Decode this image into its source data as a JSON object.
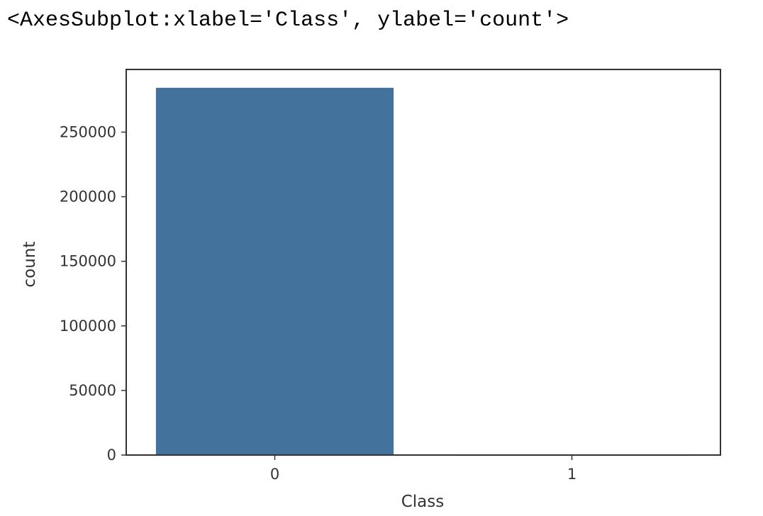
{
  "output_repr": "<AxesSubplot:xlabel='Class', ylabel='count'>",
  "colors": {
    "bar": "#43739c",
    "frame": "#333333"
  },
  "chart_data": {
    "type": "bar",
    "title": "",
    "xlabel": "Class",
    "ylabel": "count",
    "categories": [
      "0",
      "1"
    ],
    "values": [
      284315,
      492
    ],
    "ylim": [
      0,
      298500
    ],
    "yticks": [
      0,
      50000,
      100000,
      150000,
      200000,
      250000
    ],
    "ytick_labels": [
      "0",
      "50000",
      "100000",
      "150000",
      "200000",
      "250000"
    ],
    "grid": false,
    "legend": "none"
  }
}
